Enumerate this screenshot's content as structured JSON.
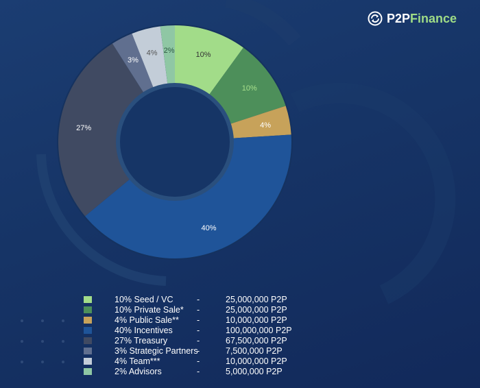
{
  "brand": {
    "name_main": "P2P",
    "name_accent": "Finance"
  },
  "chart_data": {
    "type": "pie",
    "donut": true,
    "slices": [
      {
        "label": "Seed / VC",
        "percent": 10,
        "slice_label": "10%",
        "legend_label": "10% Seed / VC",
        "amount": "25,000,000 P2P",
        "color": "#a2dc89",
        "text_color": "#333333"
      },
      {
        "label": "Private Sale*",
        "percent": 10,
        "slice_label": "10%",
        "legend_label": "10% Private Sale*",
        "amount": "25,000,000 P2P",
        "color": "#4d8f5a",
        "text_color": "#a8e08c"
      },
      {
        "label": "Public Sale**",
        "percent": 4,
        "slice_label": "4%",
        "legend_label": "4% Public Sale**",
        "amount": "10,000,000 P2P",
        "color": "#c7a25a",
        "text_color": "#ffffff"
      },
      {
        "label": "Incentives",
        "percent": 40,
        "slice_label": "40%",
        "legend_label": "40% Incentives",
        "amount": "100,000,000 P2P",
        "color": "#1f5499",
        "text_color": "#ffffff"
      },
      {
        "label": "Treasury",
        "percent": 27,
        "slice_label": "27%",
        "legend_label": "27% Treasury",
        "amount": "67,500,000 P2P",
        "color": "#404a62",
        "text_color": "#ffffff"
      },
      {
        "label": "Strategic Partners",
        "percent": 3,
        "slice_label": "3%",
        "legend_label": "3% Strategic Partners",
        "amount": "7,500,000 P2P",
        "color": "#606f8f",
        "text_color": "#ffffff"
      },
      {
        "label": "Team***",
        "percent": 4,
        "slice_label": "4%",
        "legend_label": "4% Team***",
        "amount": "10,000,000 P2P",
        "color": "#c3cdd8",
        "text_color": "#555555"
      },
      {
        "label": "Advisors",
        "percent": 2,
        "slice_label": "2%",
        "legend_label": "2% Advisors",
        "amount": "5,000,000 P2P",
        "color": "#8fc7a4",
        "text_color": "#2f5a44"
      }
    ],
    "legend_separator": "-",
    "legend_placement": "bottom"
  }
}
